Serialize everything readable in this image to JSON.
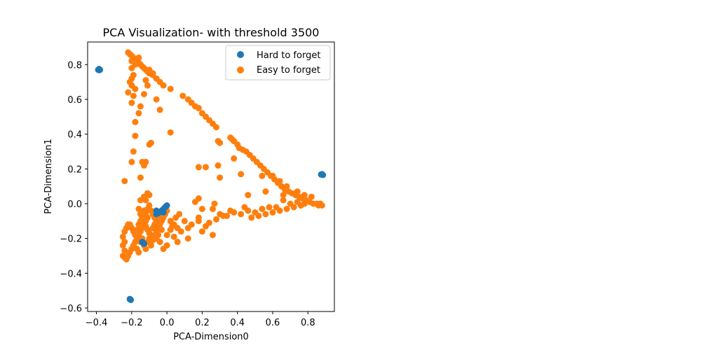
{
  "chart_data": {
    "type": "scatter",
    "title": "PCA Visualization- with threshold 3500",
    "xlabel": "PCA-Dimension0",
    "ylabel": "PCA-Dimension1",
    "xlim": [
      -0.45,
      0.95
    ],
    "ylim": [
      -0.62,
      0.93
    ],
    "xticks": [
      -0.4,
      -0.2,
      0.0,
      0.2,
      0.4,
      0.6,
      0.8
    ],
    "xtick_labels": [
      "−0.4",
      "−0.2",
      "0.0",
      "0.2",
      "0.4",
      "0.6",
      "0.8"
    ],
    "yticks": [
      -0.6,
      -0.4,
      -0.2,
      0.0,
      0.2,
      0.4,
      0.6,
      0.8
    ],
    "ytick_labels": [
      "−0.6",
      "−0.4",
      "−0.2",
      "0.0",
      "0.2",
      "0.4",
      "0.6",
      "0.8"
    ],
    "grid": false,
    "legend_position": "top-right",
    "series": [
      {
        "name": "Easy to forget",
        "color": "#ff7f0e",
        "points": [
          [
            -0.22,
            0.87
          ],
          [
            -0.21,
            0.86
          ],
          [
            -0.2,
            0.85
          ],
          [
            -0.19,
            0.84
          ],
          [
            -0.18,
            0.83
          ],
          [
            -0.17,
            0.82
          ],
          [
            -0.16,
            0.81
          ],
          [
            -0.15,
            0.8
          ],
          [
            -0.14,
            0.79
          ],
          [
            -0.13,
            0.78
          ],
          [
            -0.12,
            0.77
          ],
          [
            -0.11,
            0.76
          ],
          [
            -0.1,
            0.75
          ],
          [
            -0.08,
            0.74
          ],
          [
            -0.06,
            0.72
          ],
          [
            -0.04,
            0.7
          ],
          [
            -0.02,
            0.68
          ],
          [
            0.02,
            0.66
          ],
          [
            0.09,
            0.62
          ],
          [
            0.12,
            0.6
          ],
          [
            0.14,
            0.58
          ],
          [
            0.16,
            0.56
          ],
          [
            0.18,
            0.55
          ],
          [
            0.2,
            0.52
          ],
          [
            0.22,
            0.5
          ],
          [
            0.24,
            0.48
          ],
          [
            0.26,
            0.46
          ],
          [
            0.28,
            0.44
          ],
          [
            0.29,
            0.36
          ],
          [
            0.3,
            0.35
          ],
          [
            0.36,
            0.38
          ],
          [
            0.37,
            0.37
          ],
          [
            0.38,
            0.36
          ],
          [
            0.4,
            0.34
          ],
          [
            0.41,
            0.32
          ],
          [
            0.43,
            0.31
          ],
          [
            0.45,
            0.3
          ],
          [
            0.47,
            0.28
          ],
          [
            0.49,
            0.26
          ],
          [
            0.51,
            0.24
          ],
          [
            0.53,
            0.22
          ],
          [
            0.55,
            0.2
          ],
          [
            0.57,
            0.18
          ],
          [
            0.59,
            0.16
          ],
          [
            0.61,
            0.14
          ],
          [
            0.63,
            0.12
          ],
          [
            0.65,
            0.1
          ],
          [
            0.67,
            0.08
          ],
          [
            0.69,
            0.07
          ],
          [
            0.71,
            0.06
          ],
          [
            0.73,
            0.05
          ],
          [
            0.75,
            0.04
          ],
          [
            0.77,
            0.03
          ],
          [
            0.79,
            0.02
          ],
          [
            0.81,
            0.01
          ],
          [
            0.83,
            0.0
          ],
          [
            0.85,
            0.0
          ],
          [
            0.86,
            -0.01
          ],
          [
            0.87,
            0.0
          ],
          [
            0.88,
            -0.01
          ],
          [
            0.6,
            0.16
          ],
          [
            0.64,
            0.13
          ],
          [
            0.68,
            0.1
          ],
          [
            0.66,
            0.05
          ],
          [
            0.74,
            0.07
          ],
          [
            0.78,
            0.05
          ],
          [
            0.82,
            0.04
          ],
          [
            0.78,
            0.0
          ],
          [
            0.76,
            -0.01
          ],
          [
            0.74,
            0.01
          ],
          [
            0.72,
            -0.02
          ],
          [
            0.7,
            0.0
          ],
          [
            0.68,
            -0.03
          ],
          [
            0.66,
            0.02
          ],
          [
            0.64,
            -0.04
          ],
          [
            0.62,
            -0.02
          ],
          [
            0.6,
            -0.05
          ],
          [
            0.58,
            -0.02
          ],
          [
            0.56,
            -0.06
          ],
          [
            0.54,
            -0.03
          ],
          [
            0.52,
            -0.07
          ],
          [
            0.5,
            -0.05
          ],
          [
            0.48,
            -0.08
          ],
          [
            0.46,
            -0.04
          ],
          [
            0.42,
            -0.06
          ],
          [
            0.38,
            -0.05
          ],
          [
            0.34,
            -0.07
          ],
          [
            0.3,
            -0.06
          ],
          [
            0.26,
            -0.03
          ],
          [
            0.28,
            -0.09
          ],
          [
            0.24,
            -0.11
          ],
          [
            0.22,
            -0.13
          ],
          [
            0.18,
            -0.08
          ],
          [
            0.14,
            -0.12
          ],
          [
            0.12,
            -0.14
          ],
          [
            0.1,
            -0.1
          ],
          [
            0.08,
            -0.16
          ],
          [
            0.06,
            -0.14
          ],
          [
            0.04,
            -0.12
          ],
          [
            0.02,
            -0.15
          ],
          [
            0.0,
            -0.18
          ],
          [
            -0.04,
            -0.22
          ],
          [
            -0.02,
            -0.26
          ],
          [
            0.0,
            -0.24
          ],
          [
            0.04,
            -0.19
          ],
          [
            0.06,
            -0.22
          ],
          [
            0.12,
            -0.2
          ],
          [
            0.2,
            -0.16
          ],
          [
            0.26,
            -0.18
          ],
          [
            0.2,
            -0.03
          ],
          [
            0.18,
            -0.1
          ],
          [
            0.16,
            0.01
          ],
          [
            0.18,
            0.03
          ],
          [
            0.27,
            0.0
          ],
          [
            0.32,
            -0.07
          ],
          [
            0.36,
            -0.04
          ],
          [
            0.44,
            -0.02
          ],
          [
            0.46,
            0.05
          ],
          [
            0.56,
            0.07
          ],
          [
            0.54,
            0.16
          ],
          [
            0.42,
            0.17
          ],
          [
            0.38,
            0.26
          ],
          [
            0.3,
            0.15
          ],
          [
            0.29,
            0.22
          ],
          [
            0.22,
            0.21
          ],
          [
            0.18,
            0.21
          ],
          [
            -0.24,
            0.13
          ],
          [
            -0.2,
            0.24
          ],
          [
            -0.19,
            0.3
          ],
          [
            -0.18,
            0.39
          ],
          [
            -0.18,
            0.47
          ],
          [
            -0.16,
            0.52
          ],
          [
            -0.15,
            0.56
          ],
          [
            -0.13,
            0.63
          ],
          [
            -0.12,
            0.71
          ],
          [
            -0.11,
            0.68
          ],
          [
            -0.1,
            0.77
          ],
          [
            -0.08,
            0.75
          ],
          [
            -0.06,
            0.6
          ],
          [
            -0.04,
            0.54
          ],
          [
            0.02,
            0.41
          ],
          [
            -0.09,
            0.35
          ],
          [
            -0.1,
            0.34
          ],
          [
            -0.12,
            0.24
          ],
          [
            -0.13,
            0.22
          ],
          [
            -0.14,
            0.24
          ],
          [
            -0.15,
            0.15
          ],
          [
            -0.15,
            0.02
          ],
          [
            -0.16,
            -0.03
          ],
          [
            -0.15,
            -0.06
          ],
          [
            -0.21,
            0.86
          ],
          [
            -0.2,
            0.82
          ],
          [
            -0.2,
            0.78
          ],
          [
            -0.19,
            0.74
          ],
          [
            -0.21,
            0.7
          ],
          [
            -0.2,
            0.68
          ],
          [
            -0.18,
            0.66
          ],
          [
            -0.22,
            0.64
          ],
          [
            -0.19,
            0.62
          ],
          [
            -0.2,
            0.58
          ],
          [
            -0.2,
            0.72
          ],
          [
            -0.18,
            0.8
          ],
          [
            -0.16,
            0.84
          ],
          [
            -0.13,
            -0.04
          ],
          [
            -0.12,
            -0.06
          ],
          [
            -0.11,
            -0.08
          ],
          [
            -0.12,
            -0.1
          ],
          [
            -0.13,
            -0.12
          ],
          [
            -0.14,
            -0.14
          ],
          [
            -0.15,
            -0.16
          ],
          [
            -0.16,
            -0.18
          ],
          [
            -0.17,
            -0.2
          ],
          [
            -0.18,
            -0.22
          ],
          [
            -0.19,
            -0.24
          ],
          [
            -0.2,
            -0.26
          ],
          [
            -0.21,
            -0.28
          ],
          [
            -0.22,
            -0.3
          ],
          [
            -0.23,
            -0.32
          ],
          [
            -0.24,
            -0.31
          ],
          [
            -0.25,
            -0.3
          ],
          [
            -0.24,
            -0.27
          ],
          [
            -0.25,
            -0.24
          ],
          [
            -0.24,
            -0.22
          ],
          [
            -0.25,
            -0.19
          ],
          [
            -0.24,
            -0.16
          ],
          [
            -0.23,
            -0.14
          ],
          [
            -0.22,
            -0.12
          ],
          [
            -0.21,
            -0.12
          ],
          [
            -0.2,
            -0.14
          ],
          [
            -0.19,
            -0.16
          ],
          [
            -0.18,
            -0.18
          ],
          [
            -0.17,
            -0.15
          ],
          [
            -0.16,
            -0.12
          ],
          [
            -0.15,
            -0.1
          ],
          [
            -0.14,
            -0.08
          ],
          [
            -0.13,
            -0.1
          ],
          [
            -0.12,
            -0.13
          ],
          [
            -0.11,
            -0.15
          ],
          [
            -0.1,
            -0.17
          ],
          [
            -0.09,
            -0.19
          ],
          [
            -0.08,
            -0.21
          ],
          [
            -0.07,
            -0.18
          ],
          [
            -0.06,
            -0.16
          ],
          [
            -0.05,
            -0.14
          ],
          [
            -0.04,
            -0.12
          ],
          [
            -0.03,
            -0.1
          ],
          [
            -0.02,
            -0.08
          ],
          [
            -0.01,
            -0.06
          ],
          [
            0.0,
            -0.04
          ],
          [
            -0.09,
            -0.04
          ],
          [
            -0.08,
            -0.06
          ],
          [
            -0.07,
            -0.08
          ],
          [
            -0.06,
            -0.1
          ],
          [
            -0.05,
            -0.12
          ],
          [
            -0.04,
            -0.09
          ],
          [
            -0.03,
            -0.07
          ],
          [
            -0.02,
            -0.05
          ],
          [
            -0.01,
            -0.02
          ],
          [
            -0.11,
            -0.03
          ],
          [
            -0.1,
            -0.01
          ],
          [
            -0.12,
            0.02
          ],
          [
            -0.13,
            0.04
          ],
          [
            -0.11,
            0.06
          ],
          [
            -0.1,
            0.05
          ],
          [
            -0.17,
            -0.26
          ],
          [
            -0.16,
            -0.28
          ],
          [
            -0.15,
            -0.22
          ],
          [
            -0.14,
            -0.2
          ],
          [
            -0.13,
            -0.24
          ],
          [
            -0.12,
            -0.26
          ],
          [
            -0.11,
            -0.22
          ],
          [
            -0.1,
            -0.2
          ],
          [
            -0.09,
            -0.24
          ],
          [
            -0.08,
            -0.14
          ],
          [
            -0.07,
            -0.12
          ],
          [
            -0.06,
            -0.2
          ],
          [
            -0.05,
            -0.18
          ],
          [
            -0.03,
            -0.15
          ],
          [
            0.02,
            -0.1
          ],
          [
            0.03,
            -0.13
          ],
          [
            0.05,
            -0.08
          ],
          [
            0.07,
            -0.06
          ]
        ]
      },
      {
        "name": "Hard to forget",
        "color": "#1f77b4",
        "points": [
          [
            -0.39,
            0.77
          ],
          [
            -0.38,
            0.77
          ],
          [
            -0.385,
            0.775
          ],
          [
            -0.383,
            0.768
          ],
          [
            0.88,
            0.17
          ],
          [
            0.875,
            0.168
          ],
          [
            0.885,
            0.165
          ],
          [
            -0.21,
            -0.55
          ],
          [
            -0.205,
            -0.553
          ],
          [
            -0.21,
            -0.548
          ],
          [
            0.0,
            -0.01
          ],
          [
            -0.01,
            -0.02
          ],
          [
            -0.005,
            -0.015
          ],
          [
            -0.02,
            -0.03
          ],
          [
            -0.03,
            -0.04
          ],
          [
            -0.02,
            -0.05
          ],
          [
            -0.06,
            -0.04
          ],
          [
            -0.055,
            -0.05
          ],
          [
            -0.06,
            -0.06
          ],
          [
            -0.05,
            -0.055
          ],
          [
            -0.14,
            -0.22
          ],
          [
            -0.13,
            -0.23
          ],
          [
            -0.135,
            -0.225
          ]
        ]
      }
    ]
  }
}
